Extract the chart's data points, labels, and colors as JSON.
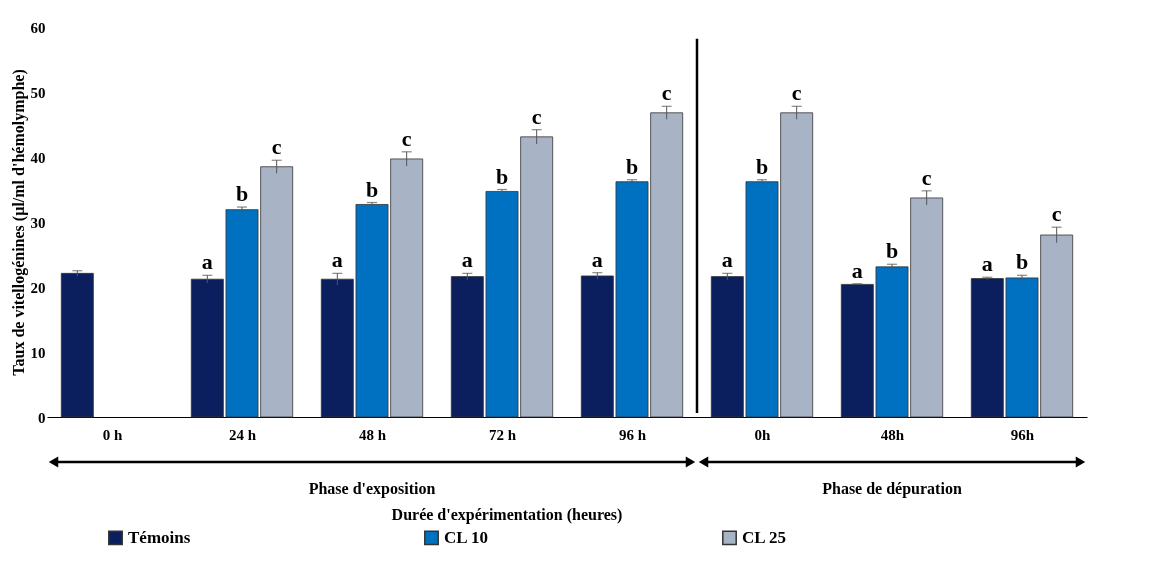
{
  "chart_data": {
    "type": "bar",
    "xlabel": "Durée d'expérimentation (heures)",
    "ylabel": "Taux de vitellogénines (µl/ml d'hémolymphe)",
    "categories": [
      "0 h",
      "24 h",
      "48 h",
      "72 h",
      "96 h",
      "0h",
      "48h",
      "96h"
    ],
    "series": [
      {
        "name": "Témoins",
        "color": "#0b1f5e",
        "values": [
          22.1,
          21.2,
          21.2,
          21.6,
          21.7,
          21.6,
          20.4,
          21.3
        ],
        "errors": [
          0.4,
          0.6,
          0.9,
          0.5,
          0.5,
          0.5,
          0.1,
          0.2
        ],
        "value_labels": [
          null,
          "a",
          "a",
          "a",
          "a",
          "a",
          "a",
          "a"
        ]
      },
      {
        "name": "CL 10",
        "color": "#0070c0",
        "values": [
          null,
          31.9,
          32.7,
          34.7,
          36.2,
          36.2,
          23.1,
          21.4
        ],
        "errors": [
          null,
          0.4,
          0.3,
          0.3,
          0.3,
          0.3,
          0.4,
          0.4
        ],
        "value_labels": [
          null,
          "b",
          "b",
          "b",
          "b",
          "b",
          "b",
          "b"
        ]
      },
      {
        "name": "CL 25",
        "color": "#a8b4c6",
        "values": [
          null,
          38.5,
          39.7,
          43.1,
          46.8,
          46.8,
          33.7,
          28.0
        ],
        "errors": [
          null,
          1.0,
          1.1,
          1.1,
          1.0,
          1.0,
          1.1,
          1.2
        ],
        "value_labels": [
          null,
          "c",
          "c",
          "c",
          "c",
          "c",
          "c",
          "c"
        ]
      }
    ],
    "ylim": [
      0,
      60
    ],
    "yticks": [
      0,
      10,
      20,
      30,
      40,
      50,
      60
    ],
    "annotations": [
      "Phase d'exposition",
      "Phase de dépuration"
    ],
    "grid": false,
    "legend": "bottom"
  }
}
